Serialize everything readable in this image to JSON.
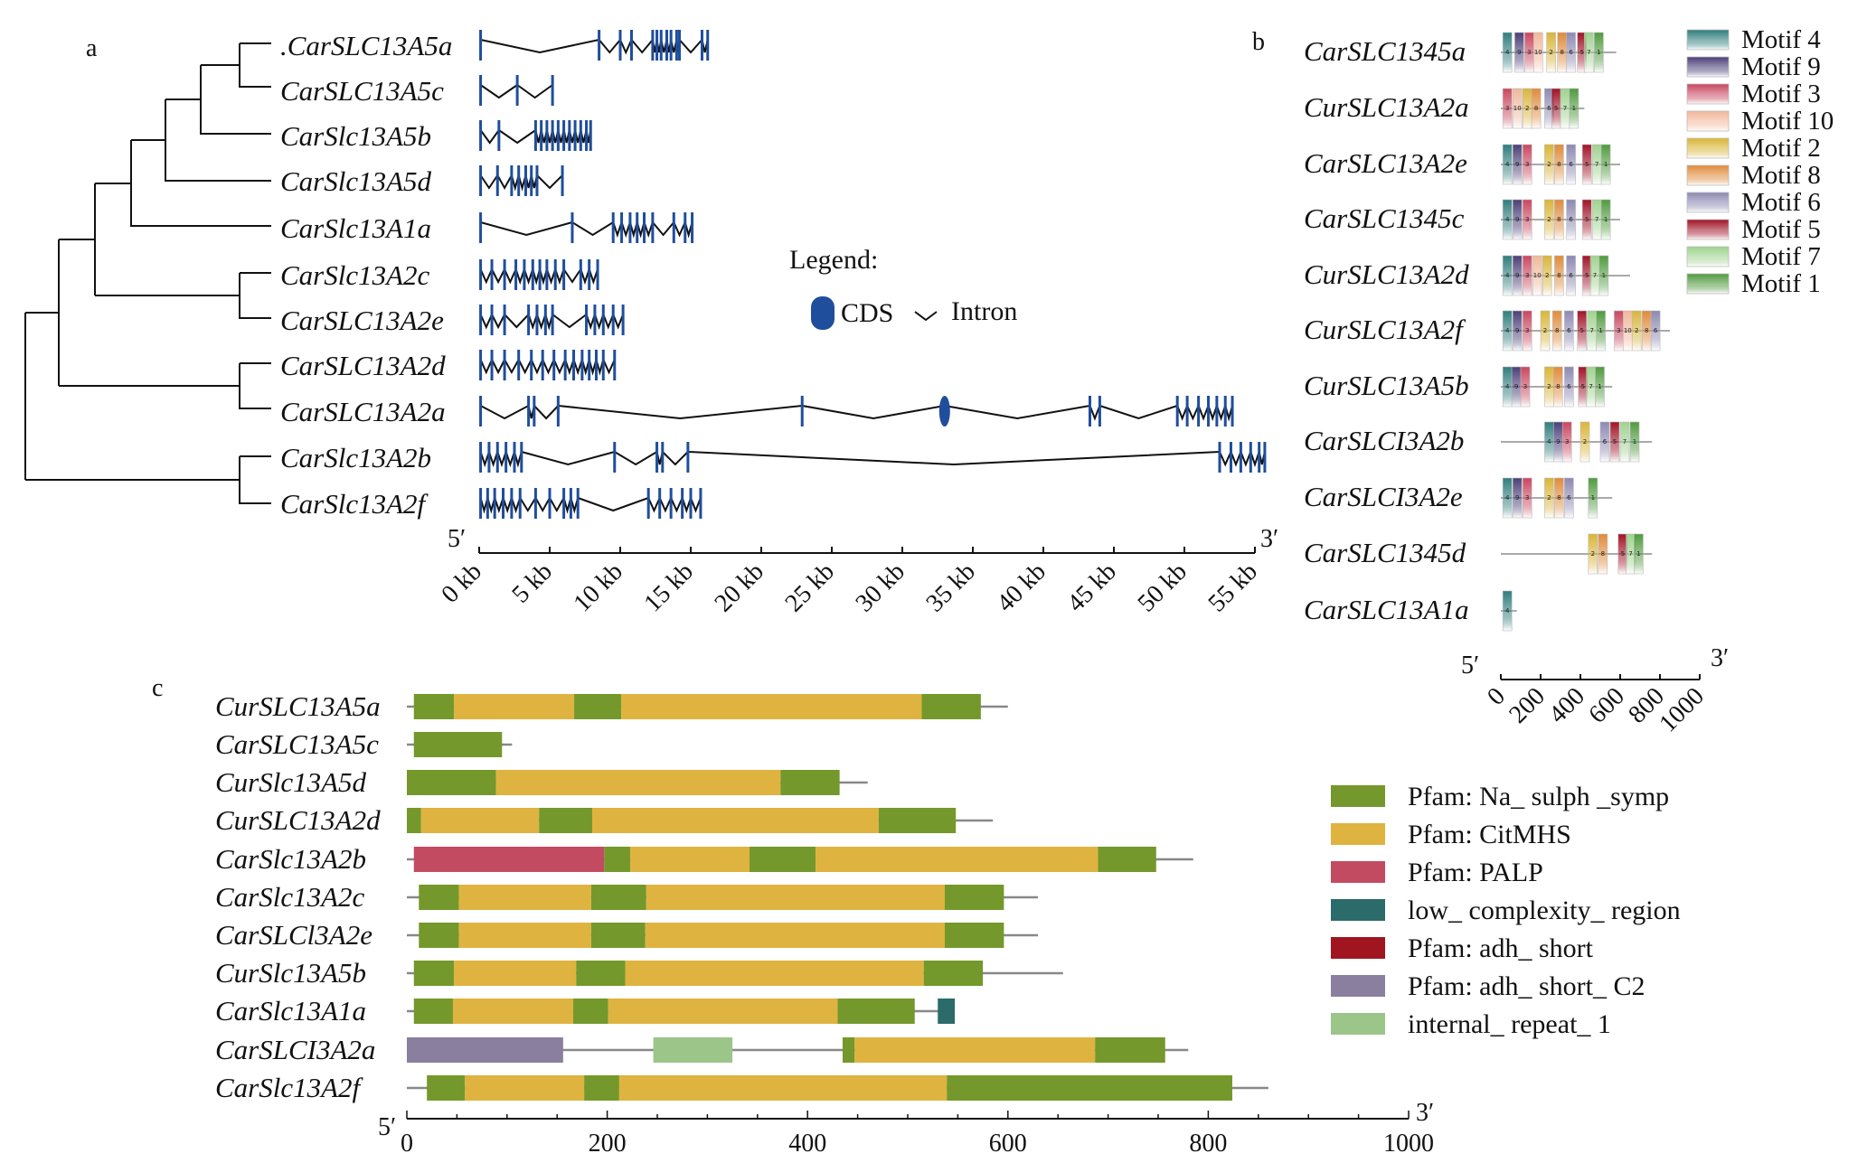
{
  "colors": {
    "cds": "#1f4e9c",
    "tree": "#111111",
    "na_sulph": "#74982b",
    "citmhs": "#dfb340",
    "palp": "#c24b62",
    "low_complexity": "#2b6b6a",
    "adh_short": "#a01520",
    "adh_short_c2": "#8a7f9e",
    "internal_repeat": "#9cc58a"
  },
  "panel_a": {
    "label": "a",
    "genes": [
      {
        "name": ".CarSLC13A5a",
        "length_kb": 16.3,
        "exons_kb": [
          0.1,
          8.5,
          10.0,
          10.8,
          12.3,
          12.6,
          12.9,
          13.3,
          13.6,
          14.0,
          14.2,
          15.8,
          16.2
        ]
      },
      {
        "name": "CarSLC13A5c",
        "length_kb": 5.3,
        "exons_kb": [
          0.1,
          2.7,
          5.2
        ]
      },
      {
        "name": "CarSlc13A5b",
        "length_kb": 8.0,
        "exons_kb": [
          0.1,
          1.4,
          4.0,
          4.4,
          4.8,
          5.2,
          5.6,
          6.0,
          6.4,
          6.8,
          7.2,
          7.6,
          7.9
        ]
      },
      {
        "name": "CarSlc13A5d",
        "length_kb": 6.0,
        "exons_kb": [
          0.1,
          1.3,
          2.3,
          2.8,
          3.3,
          3.7,
          4.1,
          5.9
        ]
      },
      {
        "name": "CarSlc13A1a",
        "length_kb": 15.2,
        "exons_kb": [
          0.1,
          6.6,
          9.5,
          10.1,
          10.7,
          11.2,
          11.7,
          12.3,
          13.8,
          14.6,
          15.1
        ]
      },
      {
        "name": "CarSlc13A2c",
        "length_kb": 8.5,
        "exons_kb": [
          0.1,
          0.9,
          1.8,
          2.6,
          3.2,
          3.8,
          4.3,
          4.8,
          5.4,
          6.0,
          7.2,
          7.8,
          8.4
        ]
      },
      {
        "name": "CarSLC13A2e",
        "length_kb": 10.3,
        "exons_kb": [
          0.1,
          0.9,
          1.8,
          3.5,
          4.1,
          4.7,
          5.2,
          7.6,
          8.2,
          8.8,
          9.5,
          10.2
        ]
      },
      {
        "name": "CarSLC13A2d",
        "length_kb": 9.7,
        "exons_kb": [
          0.1,
          0.9,
          1.8,
          2.8,
          3.7,
          4.5,
          5.3,
          6.1,
          6.7,
          7.3,
          7.8,
          8.3,
          8.8,
          9.6
        ]
      },
      {
        "name": "CarSLC13A2a",
        "length_kb": 53.5,
        "exons_kb": [
          0.1,
          3.5,
          3.9,
          5.6,
          22.9,
          33.0,
          43.3,
          44.0,
          49.5,
          50.2,
          51.0,
          51.7,
          52.3,
          52.9,
          53.4
        ]
      },
      {
        "name": "CarSlc13A2b",
        "length_kb": 55.8,
        "exons_kb": [
          0.1,
          0.7,
          1.3,
          1.9,
          2.5,
          3.0,
          9.6,
          12.6,
          13.0,
          14.8,
          52.5,
          53.3,
          54.0,
          54.7,
          55.3,
          55.7
        ]
      },
      {
        "name": "CarSlc13A2f",
        "length_kb": 15.8,
        "exons_kb": [
          0.1,
          0.6,
          1.1,
          1.7,
          2.3,
          2.9,
          4.0,
          5.0,
          6.0,
          6.5,
          7.0,
          12.0,
          12.8,
          13.6,
          14.4,
          15.0,
          15.7
        ]
      }
    ],
    "axis": {
      "ticks": [
        "0 kb",
        "5 kb",
        "10 kb",
        "15 kb",
        "20 kb",
        "25 kb",
        "30 kb",
        "35 kb",
        "40 kb",
        "45 kb",
        "50 kb",
        "55 kb"
      ],
      "tick_values": [
        0,
        5,
        10,
        15,
        20,
        25,
        30,
        35,
        40,
        45,
        50,
        55
      ],
      "five_prime": "5′",
      "three_prime": "3′"
    },
    "legend": {
      "title": "Legend:",
      "cds": "CDS",
      "intron": "Intron"
    }
  },
  "panel_b": {
    "label": "b",
    "motif_legend": [
      {
        "name": "Motif 4",
        "color": "#2f7d7d"
      },
      {
        "name": "Motif 9",
        "color": "#4a3f78"
      },
      {
        "name": "Motif 3",
        "color": "#c9465f"
      },
      {
        "name": "Motif 10",
        "color": "#f2b79a"
      },
      {
        "name": "Motif 2",
        "color": "#d9b537"
      },
      {
        "name": "Motif 8",
        "color": "#e08a3a"
      },
      {
        "name": "Motif 6",
        "color": "#8c88b3"
      },
      {
        "name": "Motif 5",
        "color": "#a11226"
      },
      {
        "name": "Motif 7",
        "color": "#9fd38e"
      },
      {
        "name": "Motif 1",
        "color": "#4f9a3e"
      }
    ],
    "proteins": [
      {
        "name": "CarSLC1345a",
        "length": 580,
        "motifs": [
          [
            4,
            10
          ],
          [
            9,
            70
          ],
          [
            3,
            120
          ],
          [
            10,
            165
          ],
          [
            2,
            230
          ],
          [
            8,
            285
          ],
          [
            6,
            330
          ],
          [
            5,
            385
          ],
          [
            7,
            420
          ],
          [
            1,
            470
          ]
        ]
      },
      {
        "name": "CurSLC13A2a",
        "length": 420,
        "motifs": [
          [
            3,
            10
          ],
          [
            10,
            60
          ],
          [
            2,
            110
          ],
          [
            8,
            155
          ],
          [
            6,
            220
          ],
          [
            5,
            255
          ],
          [
            7,
            300
          ],
          [
            1,
            345
          ]
        ]
      },
      {
        "name": "CarSLC13A2e",
        "length": 600,
        "motifs": [
          [
            4,
            10
          ],
          [
            9,
            60
          ],
          [
            3,
            110
          ],
          [
            2,
            220
          ],
          [
            8,
            270
          ],
          [
            6,
            330
          ],
          [
            5,
            410
          ],
          [
            7,
            460
          ],
          [
            1,
            505
          ]
        ]
      },
      {
        "name": "CarSLC1345c",
        "length": 600,
        "motifs": [
          [
            4,
            10
          ],
          [
            9,
            60
          ],
          [
            3,
            110
          ],
          [
            2,
            220
          ],
          [
            8,
            270
          ],
          [
            6,
            330
          ],
          [
            5,
            410
          ],
          [
            7,
            460
          ],
          [
            1,
            505
          ]
        ]
      },
      {
        "name": "CurSLC13A2d",
        "length": 650,
        "motifs": [
          [
            4,
            10
          ],
          [
            9,
            60
          ],
          [
            3,
            110
          ],
          [
            10,
            160
          ],
          [
            2,
            210
          ],
          [
            8,
            270
          ],
          [
            6,
            330
          ],
          [
            5,
            410
          ],
          [
            7,
            450
          ],
          [
            1,
            495
          ]
        ]
      },
      {
        "name": "CurSLC13A2f",
        "length": 850,
        "motifs": [
          [
            4,
            10
          ],
          [
            9,
            60
          ],
          [
            3,
            110
          ],
          [
            2,
            200
          ],
          [
            8,
            260
          ],
          [
            6,
            320
          ],
          [
            5,
            385
          ],
          [
            7,
            435
          ],
          [
            1,
            480
          ],
          [
            3,
            570
          ],
          [
            10,
            615
          ],
          [
            2,
            660
          ],
          [
            8,
            710
          ],
          [
            6,
            755
          ]
        ]
      },
      {
        "name": "CurSLC13A5b",
        "length": 560,
        "motifs": [
          [
            4,
            10
          ],
          [
            9,
            55
          ],
          [
            3,
            100
          ],
          [
            2,
            220
          ],
          [
            8,
            265
          ],
          [
            6,
            320
          ],
          [
            5,
            390
          ],
          [
            7,
            430
          ],
          [
            1,
            475
          ]
        ]
      },
      {
        "name": "CarSLCI3A2b",
        "length": 760,
        "motifs": [
          [
            4,
            220
          ],
          [
            9,
            265
          ],
          [
            3,
            310
          ],
          [
            2,
            400
          ],
          [
            6,
            500
          ],
          [
            5,
            550
          ],
          [
            7,
            600
          ],
          [
            1,
            650
          ]
        ]
      },
      {
        "name": "CarSLCI3A2e",
        "length": 560,
        "motifs": [
          [
            4,
            10
          ],
          [
            9,
            60
          ],
          [
            3,
            110
          ],
          [
            2,
            220
          ],
          [
            8,
            270
          ],
          [
            6,
            320
          ],
          [
            1,
            440
          ]
        ]
      },
      {
        "name": "CarSLC1345d",
        "length": 760,
        "motifs": [
          [
            2,
            440
          ],
          [
            8,
            490
          ],
          [
            5,
            590
          ],
          [
            7,
            630
          ],
          [
            1,
            670
          ]
        ]
      },
      {
        "name": "CarSLC13A1a",
        "length": 80,
        "motifs": [
          [
            4,
            10
          ]
        ]
      }
    ],
    "axis": {
      "ticks": [
        "0",
        "200",
        "400",
        "600",
        "800",
        "1000"
      ],
      "tick_values": [
        0,
        200,
        400,
        600,
        800,
        1000
      ],
      "five_prime": "5′",
      "three_prime": "3′"
    }
  },
  "panel_c": {
    "label": "c",
    "legend": [
      {
        "label": "Pfam: Na_ sulph _symp",
        "key": "na_sulph"
      },
      {
        "label": "Pfam: CitMHS",
        "key": "citmhs"
      },
      {
        "label": "Pfam: PALP",
        "key": "palp"
      },
      {
        "label": "low_ complexity_ region",
        "key": "low_complexity"
      },
      {
        "label": "Pfam: adh_ short",
        "key": "adh_short"
      },
      {
        "label": "Pfam: adh_ short_ C2",
        "key": "adh_short_c2"
      },
      {
        "label": "internal_ repeat_ 1",
        "key": "internal_repeat"
      }
    ],
    "proteins": [
      {
        "name": "CurSLC13A5a",
        "length": 600,
        "domains": [
          [
            "na_sulph",
            7,
            47
          ],
          [
            "citmhs",
            47,
            167
          ],
          [
            "na_sulph",
            167,
            214
          ],
          [
            "citmhs",
            214,
            514
          ],
          [
            "na_sulph",
            514,
            573
          ]
        ]
      },
      {
        "name": "CarSLC13A5c",
        "length": 105,
        "domains": [
          [
            "na_sulph",
            7,
            95
          ]
        ]
      },
      {
        "name": "CurSlc13A5d",
        "length": 460,
        "domains": [
          [
            "na_sulph",
            0,
            89
          ],
          [
            "citmhs",
            89,
            373
          ],
          [
            "na_sulph",
            373,
            432
          ]
        ]
      },
      {
        "name": "CurSLC13A2d",
        "length": 585,
        "domains": [
          [
            "na_sulph",
            0,
            14
          ],
          [
            "citmhs",
            14,
            132
          ],
          [
            "na_sulph",
            132,
            185
          ],
          [
            "citmhs",
            185,
            471
          ],
          [
            "na_sulph",
            471,
            548
          ]
        ]
      },
      {
        "name": "CarSlc13A2b",
        "length": 785,
        "domains": [
          [
            "palp",
            7,
            197
          ],
          [
            "na_sulph",
            197,
            223
          ],
          [
            "citmhs",
            223,
            342
          ],
          [
            "na_sulph",
            342,
            408
          ],
          [
            "citmhs",
            408,
            690
          ],
          [
            "na_sulph",
            690,
            748
          ]
        ]
      },
      {
        "name": "CarSlc13A2c",
        "length": 630,
        "domains": [
          [
            "na_sulph",
            12,
            52
          ],
          [
            "citmhs",
            52,
            184
          ],
          [
            "na_sulph",
            184,
            239
          ],
          [
            "citmhs",
            239,
            537
          ],
          [
            "na_sulph",
            537,
            596
          ]
        ]
      },
      {
        "name": "CarSLCl3A2e",
        "length": 630,
        "domains": [
          [
            "na_sulph",
            12,
            52
          ],
          [
            "citmhs",
            52,
            184
          ],
          [
            "na_sulph",
            184,
            238
          ],
          [
            "citmhs",
            238,
            537
          ],
          [
            "na_sulph",
            537,
            596
          ]
        ]
      },
      {
        "name": "CurSlc13A5b",
        "length": 655,
        "domains": [
          [
            "na_sulph",
            7,
            47
          ],
          [
            "citmhs",
            47,
            169
          ],
          [
            "na_sulph",
            169,
            218
          ],
          [
            "citmhs",
            218,
            516
          ],
          [
            "na_sulph",
            516,
            575
          ]
        ]
      },
      {
        "name": "CarSlc13A1a",
        "length": 545,
        "domains": [
          [
            "na_sulph",
            7,
            46
          ],
          [
            "citmhs",
            46,
            166
          ],
          [
            "na_sulph",
            166,
            201
          ],
          [
            "citmhs",
            201,
            430
          ],
          [
            "na_sulph",
            430,
            507
          ],
          [
            "low_complexity",
            530,
            547
          ]
        ]
      },
      {
        "name": "CarSLCI3A2a",
        "length": 780,
        "domains": [
          [
            "adh_short_c2",
            0,
            156
          ],
          [
            "internal_repeat",
            246,
            325
          ],
          [
            "na_sulph",
            435,
            447
          ],
          [
            "citmhs",
            447,
            687
          ],
          [
            "na_sulph",
            687,
            757
          ]
        ]
      },
      {
        "name": "CarSlc13A2f",
        "length": 860,
        "domains": [
          [
            "na_sulph",
            20,
            58
          ],
          [
            "citmhs",
            58,
            177
          ],
          [
            "na_sulph",
            177,
            212
          ],
          [
            "citmhs",
            212,
            539
          ],
          [
            "na_sulph",
            539,
            824
          ]
        ]
      }
    ],
    "axis": {
      "ticks": [
        "0",
        "200",
        "400",
        "600",
        "800",
        "1000"
      ],
      "tick_values": [
        0,
        200,
        400,
        600,
        800,
        1000
      ],
      "five_prime": "5′",
      "three_prime": "3′"
    }
  }
}
